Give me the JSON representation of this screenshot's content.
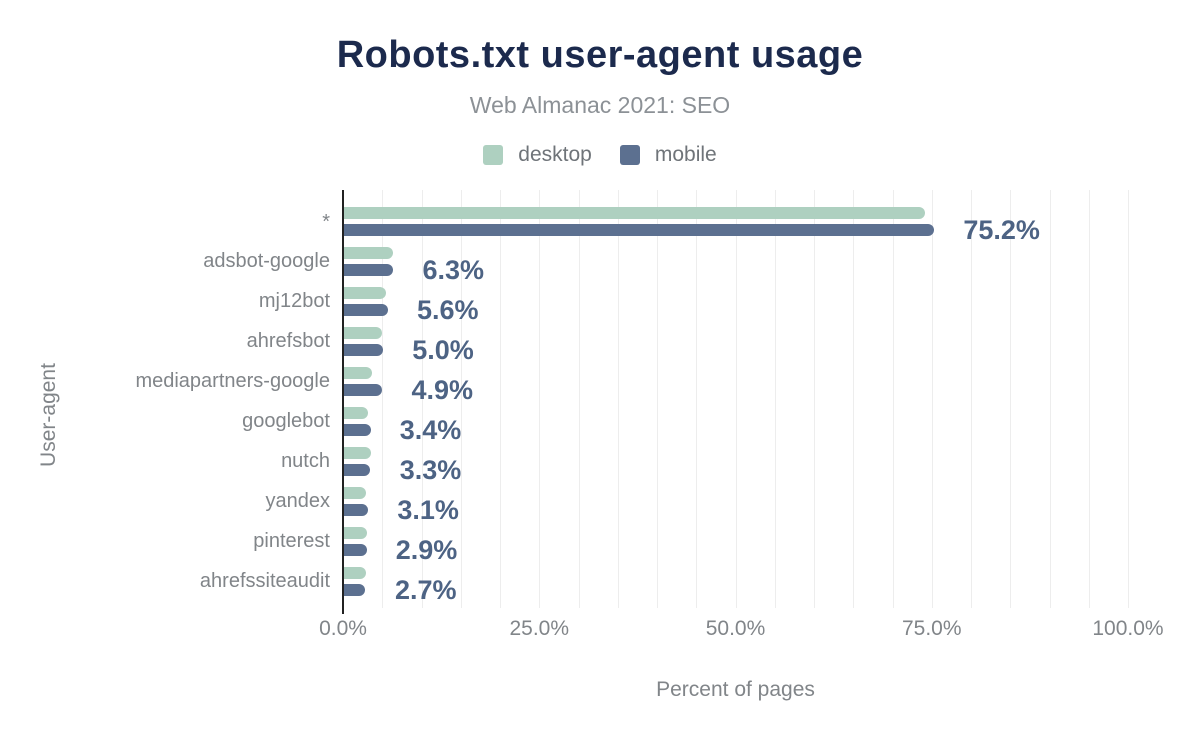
{
  "header": {
    "title": "Robots.txt user-agent usage",
    "subtitle": "Web Almanac 2021: SEO"
  },
  "chart_data": {
    "type": "bar",
    "orientation": "horizontal",
    "title": "Robots.txt user-agent usage",
    "subtitle": "Web Almanac 2021: SEO",
    "categories": [
      "*",
      "adsbot-google",
      "mj12bot",
      "ahrefsbot",
      "mediapartners-google",
      "googlebot",
      "nutch",
      "yandex",
      "pinterest",
      "ahrefssiteaudit"
    ],
    "series": [
      {
        "name": "desktop",
        "color": "#aed0c0",
        "values": [
          74.0,
          6.2,
          5.4,
          4.9,
          3.6,
          3.1,
          3.4,
          2.8,
          2.9,
          2.8
        ]
      },
      {
        "name": "mobile",
        "color": "#5c7090",
        "values": [
          75.2,
          6.3,
          5.6,
          5.0,
          4.9,
          3.4,
          3.3,
          3.1,
          2.9,
          2.7
        ]
      }
    ],
    "annotations": [
      "75.2%",
      "6.3%",
      "5.6%",
      "5.0%",
      "4.9%",
      "3.4%",
      "3.3%",
      "3.1%",
      "2.9%",
      "2.7%"
    ],
    "xlabel": "Percent of pages",
    "ylabel": "User-agent",
    "xlim": [
      0,
      100
    ],
    "x_ticks": [
      {
        "value": 0,
        "label": "0.0%"
      },
      {
        "value": 25,
        "label": "25.0%"
      },
      {
        "value": 50,
        "label": "50.0%"
      },
      {
        "value": 75,
        "label": "75.0%"
      },
      {
        "value": 100,
        "label": "100.0%"
      }
    ],
    "grid": {
      "show": true,
      "interval_percent": 5
    },
    "legend_position": "top"
  },
  "colors": {
    "title": "#1c2a4d",
    "subtitle": "#8c9196",
    "annotation": "#4d6384",
    "axis_text": "#818589",
    "grid_line": "#ededed",
    "axis_line": "#212121",
    "background": "#ffffff"
  }
}
